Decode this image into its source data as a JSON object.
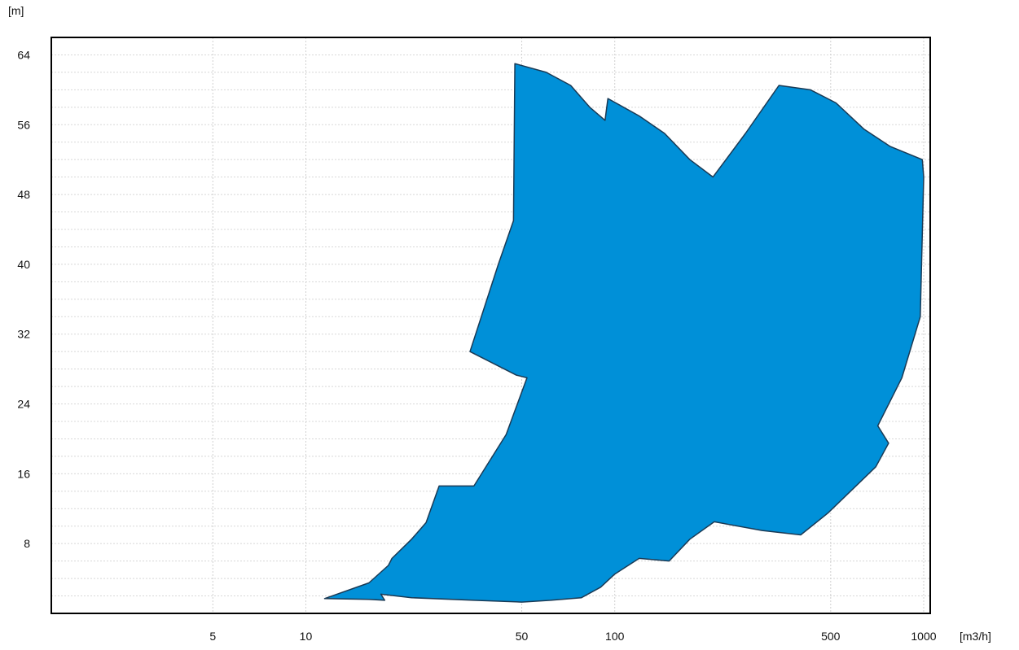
{
  "chart_data": {
    "type": "area",
    "title": "",
    "xlabel": "[m3/h]",
    "ylabel": "[m]",
    "x_scale": "log",
    "xlim": [
      1.5,
      1050
    ],
    "ylim": [
      0,
      66
    ],
    "x_ticks": [
      5,
      10,
      50,
      100,
      500,
      1000
    ],
    "x_tick_labels": [
      "5",
      "10",
      "50",
      "100",
      "500",
      "1000"
    ],
    "y_ticks": [
      8,
      16,
      24,
      32,
      40,
      48,
      56,
      64
    ],
    "y_tick_labels": [
      "8",
      "16",
      "24",
      "32",
      "40",
      "48",
      "56",
      "64"
    ],
    "grid": true,
    "fill_color": "#0090d8",
    "outline_color": "#1a3a55",
    "series": [
      {
        "values": [
          [
            11.5,
            1.7
          ],
          [
            16,
            3.5
          ],
          [
            18.5,
            5.5
          ],
          [
            19,
            6.3
          ],
          [
            22,
            8.5
          ],
          [
            24.5,
            10.4
          ],
          [
            27,
            14.6
          ],
          [
            35,
            14.6
          ],
          [
            44.5,
            20.5
          ],
          [
            52,
            27
          ],
          [
            48,
            27.3
          ],
          [
            34,
            30
          ],
          [
            42,
            40
          ],
          [
            47,
            45
          ],
          [
            47.5,
            63
          ],
          [
            60,
            62
          ],
          [
            72,
            60.5
          ],
          [
            83,
            58
          ],
          [
            93,
            56.5
          ],
          [
            95,
            59
          ],
          [
            120,
            57
          ],
          [
            145,
            55
          ],
          [
            175,
            52
          ],
          [
            208,
            50
          ],
          [
            265,
            55
          ],
          [
            340,
            60.5
          ],
          [
            430,
            60
          ],
          [
            520,
            58.5
          ],
          [
            640,
            55.5
          ],
          [
            780,
            53.5
          ],
          [
            990,
            52
          ],
          [
            1000,
            50
          ],
          [
            975,
            34
          ],
          [
            850,
            27
          ],
          [
            710,
            21.5
          ],
          [
            770,
            19.5
          ],
          [
            700,
            16.8
          ],
          [
            580,
            14
          ],
          [
            490,
            11.5
          ],
          [
            400,
            9
          ],
          [
            300,
            9.5
          ],
          [
            210,
            10.5
          ],
          [
            175,
            8.5
          ],
          [
            150,
            6
          ],
          [
            120,
            6.3
          ],
          [
            100,
            4.5
          ],
          [
            90,
            3
          ],
          [
            78,
            1.8
          ],
          [
            62,
            1.5
          ],
          [
            50,
            1.3
          ],
          [
            35,
            1.5
          ],
          [
            22,
            1.8
          ],
          [
            17.5,
            2.2
          ],
          [
            18,
            1.5
          ],
          [
            16,
            1.6
          ],
          [
            11.5,
            1.7
          ]
        ]
      }
    ]
  }
}
